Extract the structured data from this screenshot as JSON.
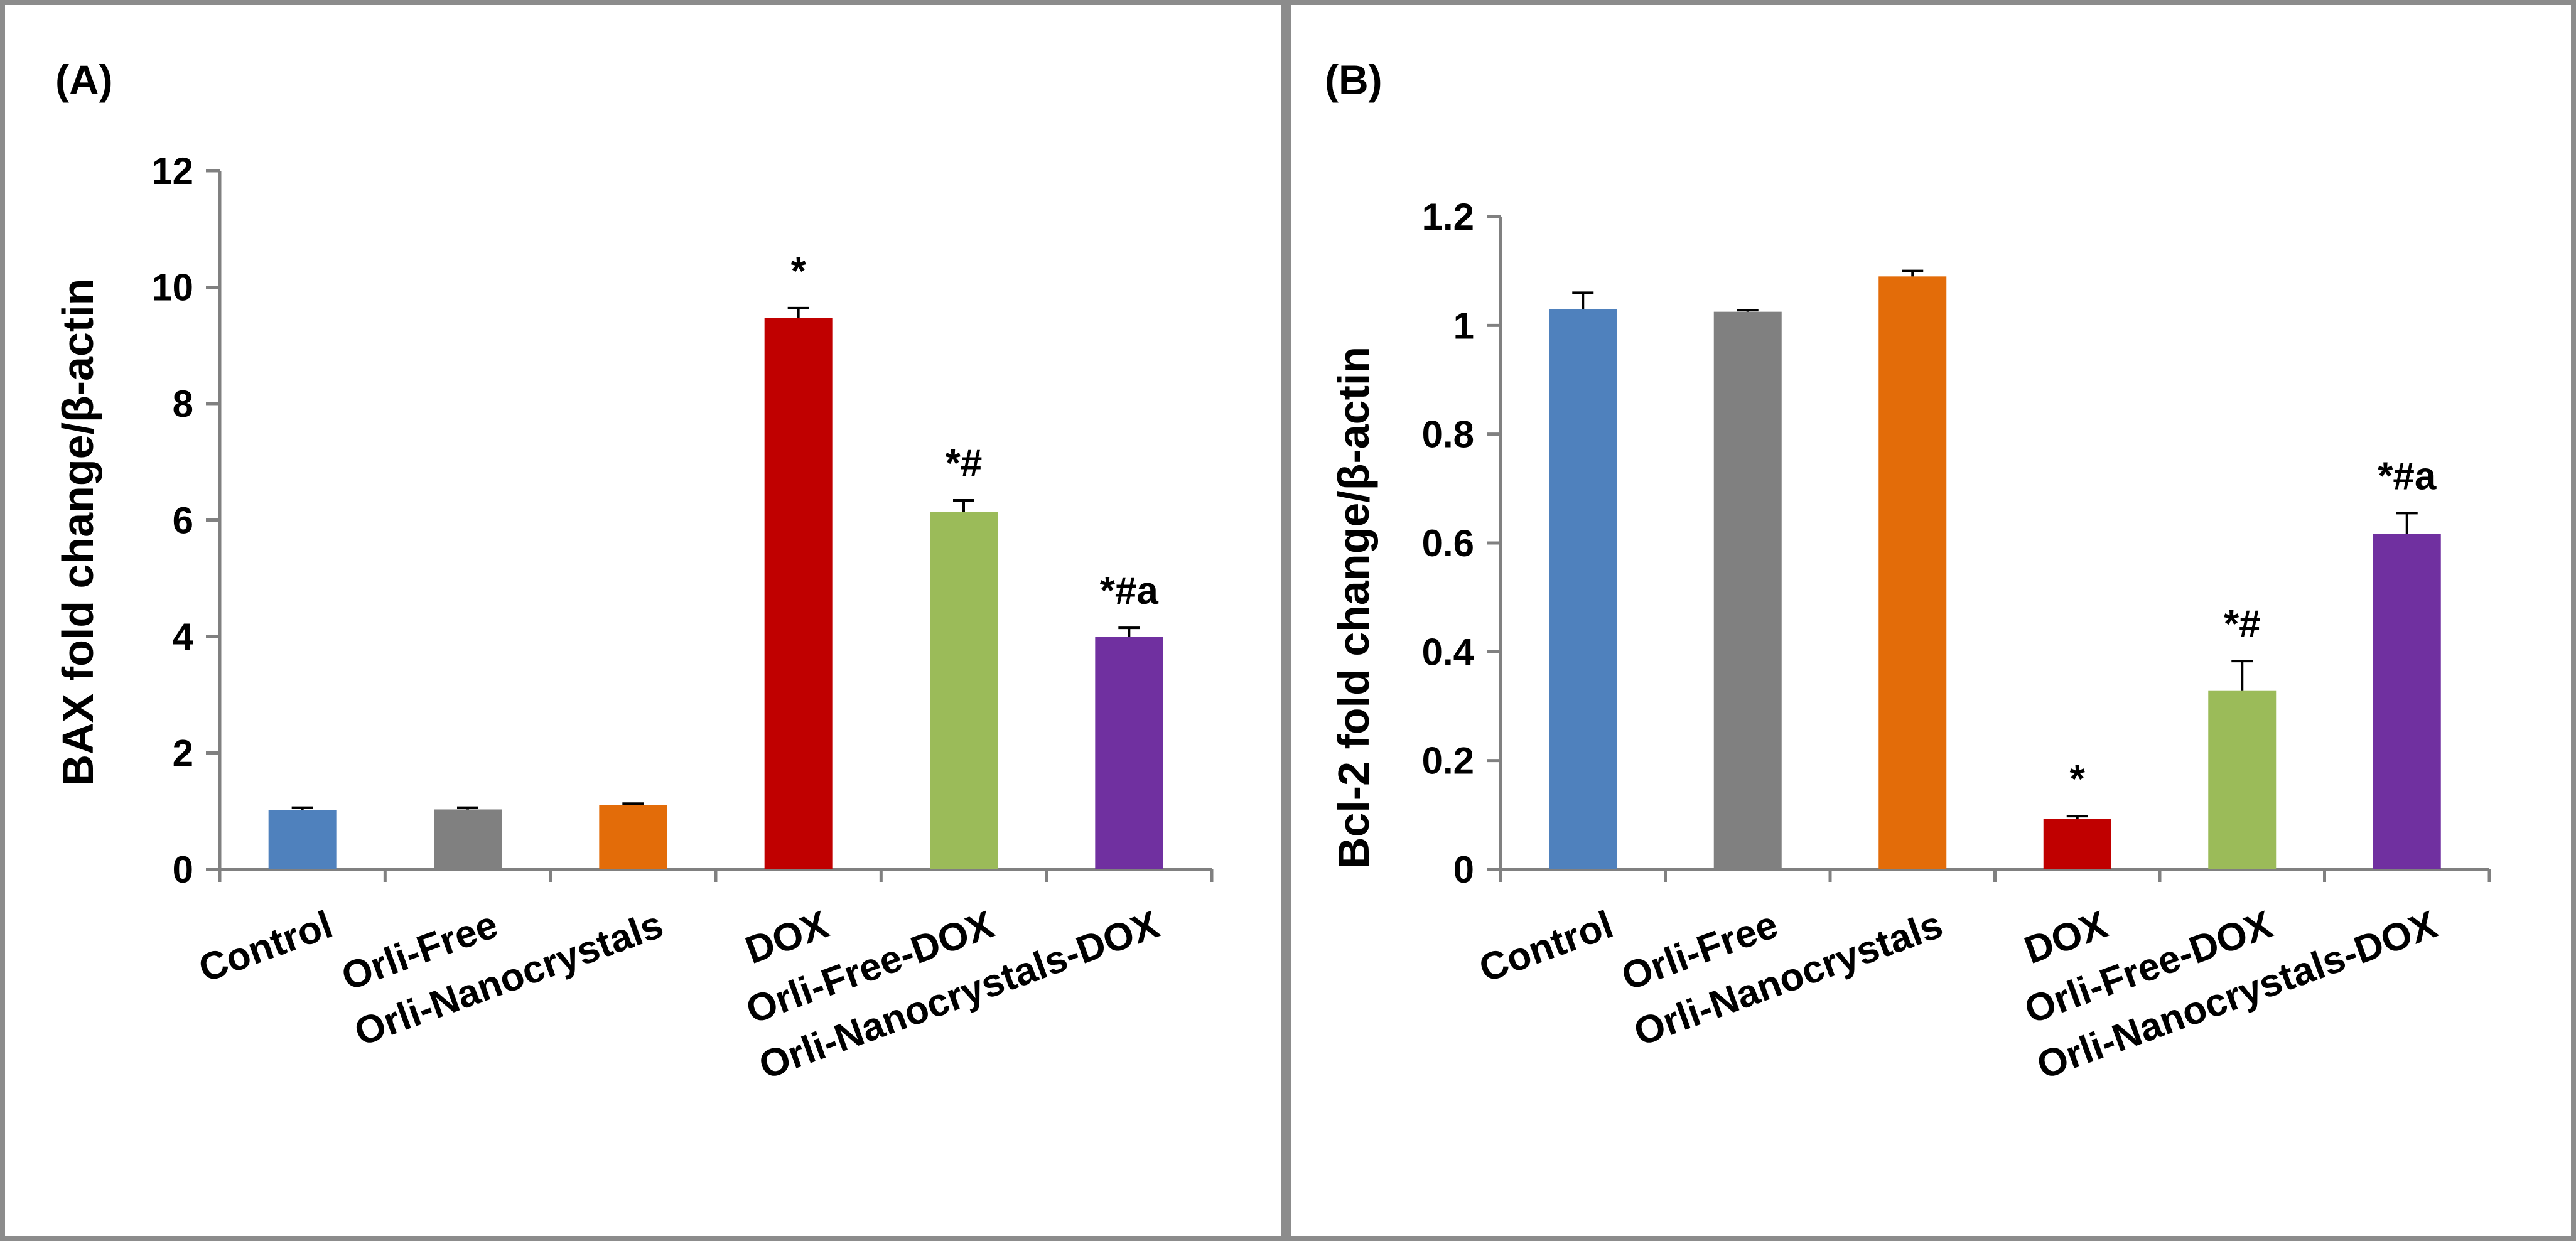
{
  "colors": {
    "frame": "#8c8c8c",
    "axis": "#808080",
    "text": "#000000",
    "bars": [
      "#4f81bd",
      "#808080",
      "#e36c09",
      "#c00000",
      "#9bbb59",
      "#7030a0"
    ]
  },
  "chart_data": [
    {
      "type": "bar",
      "panel_label": "(A)",
      "title": "",
      "xlabel": "",
      "ylabel": "BAX fold change/β-actin",
      "categories": [
        "Control",
        "Orli-Free",
        "Orli-Nanocrystals",
        "DOX",
        "Orli-Free-DOX",
        "Orli-Nanocrystals-DOX"
      ],
      "values": [
        1.02,
        1.03,
        1.1,
        9.47,
        6.14,
        4.0
      ],
      "errors": [
        0.04,
        0.03,
        0.03,
        0.17,
        0.2,
        0.15
      ],
      "annotations": [
        "",
        "",
        "",
        "*",
        "*#",
        "*#a"
      ],
      "ylim": [
        0,
        12
      ],
      "yticks": [
        0,
        2,
        4,
        6,
        8,
        10,
        12
      ],
      "ytick_labels": [
        "0",
        "2",
        "4",
        "6",
        "8",
        "10",
        "12"
      ],
      "grid": false,
      "legend": "none"
    },
    {
      "type": "bar",
      "panel_label": "(B)",
      "title": "",
      "xlabel": "",
      "ylabel": "Bcl-2 fold change/β-actin",
      "categories": [
        "Control",
        "Orli-Free",
        "Orli-Nanocrystals",
        "DOX",
        "Orli-Free-DOX",
        "Orli-Nanocrystals-DOX"
      ],
      "values": [
        1.03,
        1.025,
        1.09,
        0.093,
        0.328,
        0.617
      ],
      "errors": [
        0.03,
        0.003,
        0.01,
        0.005,
        0.055,
        0.038
      ],
      "annotations": [
        "",
        "",
        "",
        "*",
        "*#",
        "*#a"
      ],
      "ylim": [
        0,
        1.2
      ],
      "yticks": [
        0,
        0.2,
        0.4,
        0.6,
        0.8,
        1.0,
        1.2
      ],
      "ytick_labels": [
        "0",
        "0.2",
        "0.4",
        "0.6",
        "0.8",
        "1",
        "1.2"
      ],
      "grid": false,
      "legend": "none"
    }
  ]
}
